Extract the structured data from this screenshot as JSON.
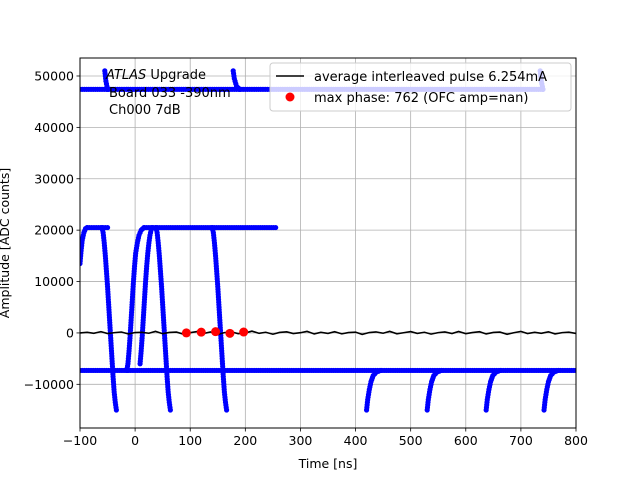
{
  "chart_data": {
    "type": "scatter",
    "xlabel": "Time [ns]",
    "ylabel": "Amplitude [ADC counts]",
    "xlim": [
      -100,
      800
    ],
    "ylim": [
      -18500,
      53500
    ],
    "xticks": [
      -100,
      0,
      100,
      200,
      300,
      400,
      500,
      600,
      700,
      800
    ],
    "xtick_labels": [
      "−100",
      "0",
      "100",
      "200",
      "300",
      "400",
      "500",
      "600",
      "700",
      "800"
    ],
    "yticks": [
      -10000,
      0,
      10000,
      20000,
      30000,
      40000,
      50000
    ],
    "ytick_labels": [
      "−10000",
      "0",
      "10000",
      "20000",
      "30000",
      "40000",
      "50000"
    ],
    "grid": true,
    "legend_position": "top-right",
    "annotation": {
      "line1_italic": "ATLAS",
      "line1_rest": " Upgrade",
      "line2": "Board 033 -390nm",
      "line3": "Ch000 7dB"
    },
    "series": [
      {
        "name": "average interleaved pulse 6.254mA",
        "style": "line",
        "color": "#000000",
        "x": [
          -100,
          -87,
          -75,
          -62,
          -50,
          -37,
          -25,
          -12,
          0,
          12,
          25,
          37,
          50,
          62,
          75,
          87,
          100,
          112,
          125,
          137,
          150,
          162,
          175,
          187,
          200,
          212,
          225,
          237,
          250,
          262,
          275,
          287,
          300,
          312,
          325,
          337,
          350,
          362,
          375,
          387,
          400,
          412,
          425,
          437,
          450,
          462,
          475,
          487,
          500,
          512,
          525,
          537,
          550,
          562,
          575,
          587,
          600,
          612,
          625,
          637,
          650,
          662,
          675,
          687,
          700,
          712,
          725,
          737,
          750,
          762,
          775,
          787,
          800
        ],
        "y": [
          0,
          120,
          -80,
          250,
          -120,
          60,
          180,
          -200,
          80,
          120,
          -60,
          300,
          -150,
          90,
          160,
          -220,
          50,
          260,
          -100,
          180,
          -300,
          60,
          200,
          -150,
          0,
          350,
          -80,
          130,
          -250,
          90,
          220,
          -120,
          40,
          300,
          -200,
          110,
          -90,
          240,
          -180,
          70,
          150,
          -280,
          80,
          200,
          -60,
          310,
          -170,
          40,
          260,
          -90,
          130,
          -230,
          60,
          190,
          -110,
          280,
          -140,
          70,
          230,
          -200,
          90,
          160,
          -260,
          40,
          300,
          -120,
          110,
          -80,
          220,
          -190,
          60,
          150,
          -100
        ]
      },
      {
        "name": "max phase: 762 (OFC amp=nan)",
        "style": "marker",
        "color": "#ff0000",
        "x": [
          93,
          120,
          146,
          172,
          197
        ],
        "y": [
          0,
          150,
          250,
          -80,
          180
        ]
      },
      {
        "name": "",
        "style": "marker",
        "color": "#0000ff",
        "segments": [
          {
            "kind": "flat",
            "x0": -100,
            "x1": 800,
            "y": -7300
          },
          {
            "kind": "flat",
            "x0": -100,
            "x1": 740,
            "y": 47400
          },
          {
            "kind": "flat",
            "x0": -87,
            "x1": -50,
            "y": 20500
          },
          {
            "kind": "flat",
            "x0": 17,
            "x1": 140,
            "y": 20500
          },
          {
            "kind": "flat",
            "x0": 140,
            "x1": 255,
            "y": 20500
          },
          {
            "kind": "curve",
            "points": [
              [
                -100,
                13500
              ],
              [
                -98,
                16000
              ],
              [
                -96,
                18000
              ],
              [
                -93,
                19500
              ],
              [
                -90,
                20300
              ],
              [
                -87,
                20500
              ]
            ]
          },
          {
            "kind": "curve",
            "points": [
              [
                -60,
                20500
              ],
              [
                -58,
                19500
              ],
              [
                -56,
                17500
              ],
              [
                -54,
                15000
              ],
              [
                -52,
                12000
              ],
              [
                -50,
                9000
              ],
              [
                -48,
                5500
              ],
              [
                -46,
                2000
              ],
              [
                -44,
                -1500
              ],
              [
                -42,
                -5000
              ],
              [
                -40,
                -8500
              ],
              [
                -38,
                -11500
              ],
              [
                -36,
                -13500
              ],
              [
                -34,
                -15000
              ]
            ]
          },
          {
            "kind": "curve",
            "points": [
              [
                -15,
                -7300
              ],
              [
                -13,
                -6000
              ],
              [
                -11,
                -3500
              ],
              [
                -9,
                -500
              ],
              [
                -7,
                3000
              ],
              [
                -5,
                6500
              ],
              [
                -3,
                10000
              ],
              [
                -1,
                13000
              ],
              [
                1,
                15500
              ],
              [
                4,
                17500
              ],
              [
                7,
                19000
              ],
              [
                11,
                20000
              ],
              [
                16,
                20500
              ]
            ]
          },
          {
            "kind": "curve",
            "points": [
              [
                38,
                20500
              ],
              [
                40,
                19500
              ],
              [
                42,
                17500
              ],
              [
                44,
                15000
              ],
              [
                46,
                12000
              ],
              [
                48,
                9000
              ],
              [
                50,
                5500
              ],
              [
                52,
                2000
              ],
              [
                54,
                -1500
              ],
              [
                56,
                -5000
              ],
              [
                58,
                -8500
              ],
              [
                60,
                -11500
              ],
              [
                62,
                -13500
              ],
              [
                64,
                -15000
              ]
            ]
          },
          {
            "kind": "curve",
            "points": [
              [
                31,
                20500
              ],
              [
                29,
                20000
              ],
              [
                27,
                19000
              ],
              [
                25,
                17500
              ],
              [
                23,
                15500
              ],
              [
                21,
                13000
              ],
              [
                19,
                10000
              ],
              [
                17,
                6500
              ],
              [
                15,
                3000
              ],
              [
                13,
                -500
              ],
              [
                11,
                -3500
              ],
              [
                9,
                -6000
              ]
            ]
          },
          {
            "kind": "curve",
            "points": [
              [
                140,
                20500
              ],
              [
                142,
                19500
              ],
              [
                144,
                17500
              ],
              [
                146,
                15000
              ],
              [
                148,
                12000
              ],
              [
                150,
                9000
              ],
              [
                152,
                5500
              ],
              [
                154,
                2000
              ],
              [
                156,
                -1500
              ],
              [
                158,
                -5000
              ],
              [
                160,
                -8500
              ],
              [
                162,
                -11500
              ],
              [
                164,
                -13500
              ],
              [
                166,
                -15000
              ]
            ]
          },
          {
            "kind": "curve",
            "points": [
              [
                -55,
                51000
              ],
              [
                -53,
                49000
              ],
              [
                -50,
                47400
              ]
            ]
          },
          {
            "kind": "curve",
            "points": [
              [
                178,
                51000
              ],
              [
                180,
                49500
              ],
              [
                184,
                48000
              ],
              [
                190,
                47400
              ]
            ]
          },
          {
            "kind": "curve",
            "points": [
              [
                735,
                51000
              ],
              [
                737,
                49000
              ],
              [
                740,
                47400
              ]
            ]
          },
          {
            "kind": "curve",
            "points": [
              [
                420,
                -15000
              ],
              [
                422,
                -13000
              ],
              [
                425,
                -11000
              ],
              [
                428,
                -9500
              ],
              [
                432,
                -8300
              ],
              [
                438,
                -7600
              ],
              [
                446,
                -7300
              ]
            ]
          },
          {
            "kind": "curve",
            "points": [
              [
                530,
                -15000
              ],
              [
                532,
                -13000
              ],
              [
                535,
                -11000
              ],
              [
                538,
                -9500
              ],
              [
                542,
                -8300
              ],
              [
                548,
                -7600
              ],
              [
                556,
                -7300
              ]
            ]
          },
          {
            "kind": "curve",
            "points": [
              [
                637,
                -15000
              ],
              [
                639,
                -13000
              ],
              [
                642,
                -11000
              ],
              [
                645,
                -9500
              ],
              [
                649,
                -8300
              ],
              [
                655,
                -7600
              ],
              [
                663,
                -7300
              ]
            ]
          },
          {
            "kind": "curve",
            "points": [
              [
                742,
                -15000
              ],
              [
                744,
                -13000
              ],
              [
                747,
                -11000
              ],
              [
                750,
                -9500
              ],
              [
                754,
                -8300
              ],
              [
                760,
                -7600
              ],
              [
                768,
                -7300
              ]
            ]
          }
        ]
      }
    ]
  }
}
